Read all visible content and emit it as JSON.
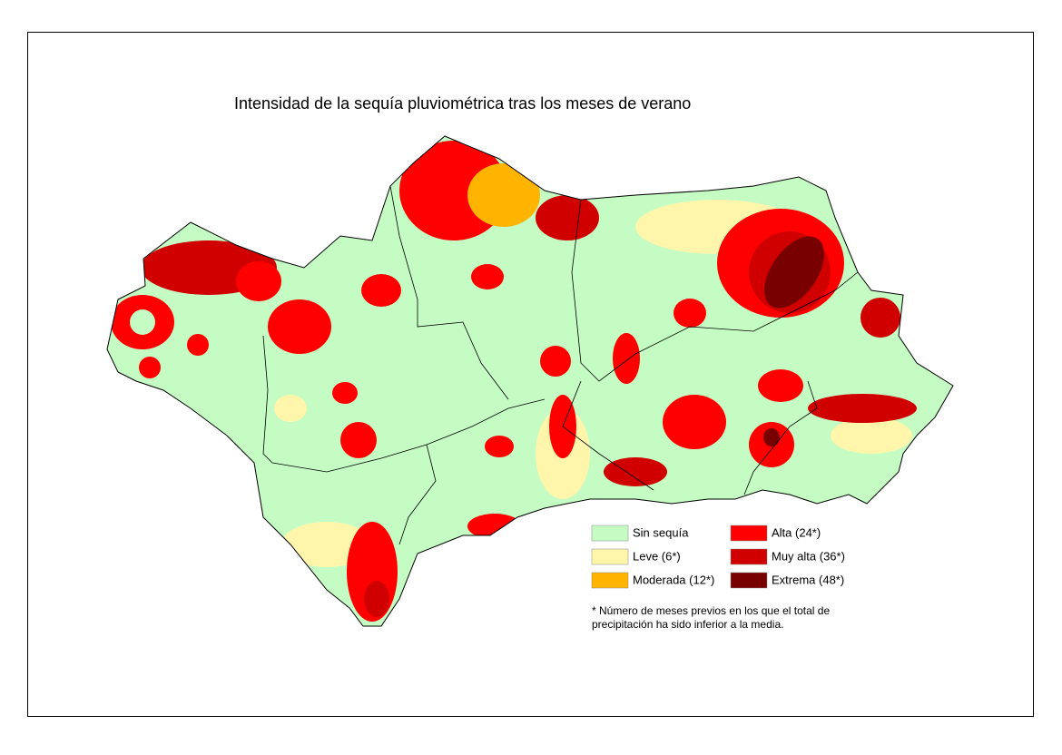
{
  "title": "Intensidad de la sequía pluviométrica tras los meses de verano",
  "legend": {
    "items": [
      {
        "label": "Sin sequía",
        "color": "#c4fcc4"
      },
      {
        "label": "Leve (6*)",
        "color": "#fff6ac"
      },
      {
        "label": "Moderada (12*)",
        "color": "#ffb400"
      },
      {
        "label": "Alta (24*)",
        "color": "#ff0000"
      },
      {
        "label": "Muy alta (36*)",
        "color": "#d00000"
      },
      {
        "label": "Extrema (48*)",
        "color": "#780000"
      }
    ]
  },
  "footnote": [
    "* Número de meses previos en los que el total de",
    "precipitación ha sido inferior a la media."
  ]
}
